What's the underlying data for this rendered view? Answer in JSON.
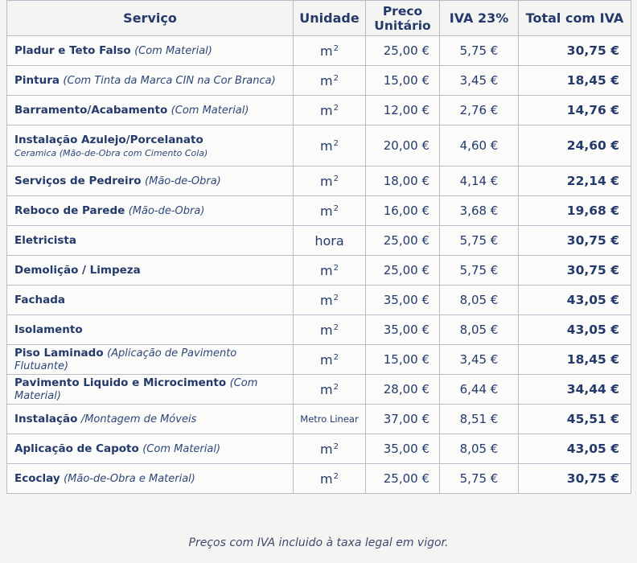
{
  "header": {
    "service": "Serviço",
    "unit": "Unidade",
    "unit_price_line1": "Preco",
    "unit_price_line2": "Unitário",
    "iva": "IVA 23%",
    "total": "Total com IVA"
  },
  "rows": [
    {
      "name": "Pladur e Teto Falso",
      "note": "(Com Material)",
      "unit_base": "m",
      "unit_exp": "2",
      "price": "25,00 €",
      "iva": "5,75 €",
      "total": "30,75 €"
    },
    {
      "name": "Pintura",
      "note": "(Com Tinta da Marca CIN na Cor Branca)",
      "unit_base": "m",
      "unit_exp": "2",
      "price": "15,00 €",
      "iva": "3,45 €",
      "total": "18,45 €"
    },
    {
      "name": "Barramento/Acabamento",
      "note": "(Com Material)",
      "unit_base": "m",
      "unit_exp": "2",
      "price": "12,00 €",
      "iva": "2,76 €",
      "total": "14,76 €"
    },
    {
      "name": "Instalação Azulejo/Porcelanato",
      "line2": "Ceramica (Mão-de-Obra com Cimento Cola)",
      "unit_base": "m",
      "unit_exp": "2",
      "price": "20,00 €",
      "iva": "4,60 €",
      "total": "24,60 €"
    },
    {
      "name": "Serviços de Pedreiro",
      "note": "(Mão-de-Obra)",
      "unit_base": "m",
      "unit_exp": "2",
      "price": "18,00 €",
      "iva": "4,14 €",
      "total": "22,14 €"
    },
    {
      "name": "Reboco de Parede",
      "note": "(Mão-de-Obra)",
      "unit_base": "m",
      "unit_exp": "2",
      "price": "16,00 €",
      "iva": "3,68 €",
      "total": "19,68 €"
    },
    {
      "name": "Eletricista",
      "note": "",
      "unit_base": "hora",
      "unit_exp": "",
      "price": "25,00 €",
      "iva": "5,75 €",
      "total": "30,75 €"
    },
    {
      "name": "Demolição / Limpeza",
      "note": "",
      "unit_base": "m",
      "unit_exp": "2",
      "price": "25,00 €",
      "iva": "5,75 €",
      "total": "30,75 €"
    },
    {
      "name": "Fachada",
      "note": "",
      "unit_base": "m",
      "unit_exp": "2",
      "price": "35,00 €",
      "iva": "8,05 €",
      "total": "43,05 €"
    },
    {
      "name": "Isolamento",
      "note": "",
      "unit_base": "m",
      "unit_exp": "2",
      "price": "35,00 €",
      "iva": "8,05 €",
      "total": "43,05 €"
    },
    {
      "name": "Piso Laminado",
      "note": "(Aplicação de Pavimento Flutuante)",
      "unit_base": "m",
      "unit_exp": "2",
      "price": "15,00 €",
      "iva": "3,45 €",
      "total": "18,45 €"
    },
    {
      "name": "Pavimento Liquido e Microcimento",
      "note": "(Com Material)",
      "unit_base": "m",
      "unit_exp": "2",
      "price": "28,00 €",
      "iva": "6,44 €",
      "total": "34,44 €"
    },
    {
      "name": "Instalação",
      "note": "/Montagem de Móveis",
      "unit_base": "Metro Linear",
      "unit_exp": "",
      "price": "37,00 €",
      "iva": "8,51 €",
      "total": "45,51 €"
    },
    {
      "name": "Aplicação de Capoto",
      "note": "(Com Material)",
      "unit_base": "m",
      "unit_exp": "2",
      "price": "35,00 €",
      "iva": "8,05 €",
      "total": "43,05 €"
    },
    {
      "name": "Ecoclay",
      "note": "(Mão-de-Obra e Material)",
      "unit_base": "m",
      "unit_exp": "2",
      "price": "25,00 €",
      "iva": "5,75 €",
      "total": "30,75 €"
    }
  ],
  "footer": "Preços com IVA incluido à taxa legal em vigor."
}
